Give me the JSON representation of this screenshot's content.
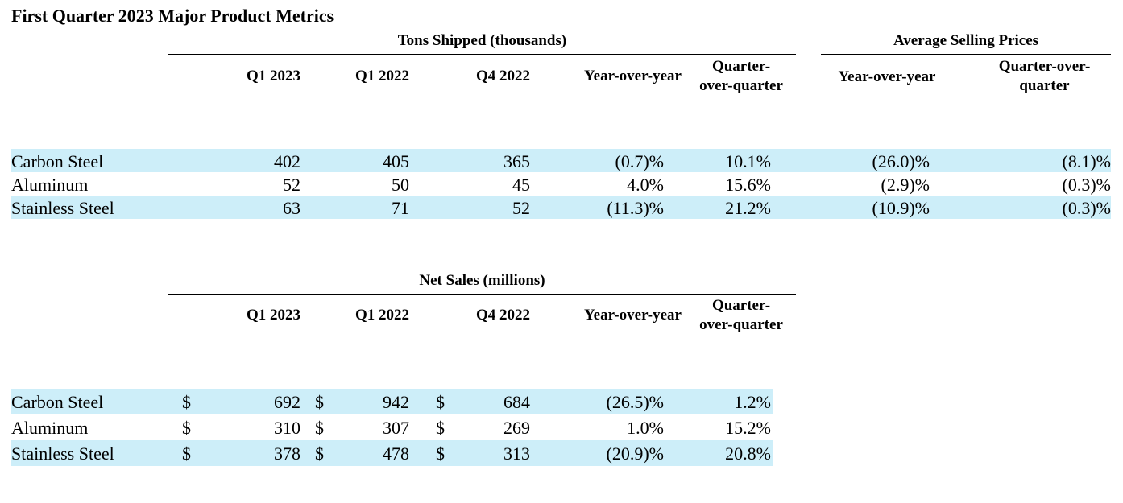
{
  "title": "First Quarter 2023 Major Product Metrics",
  "tons": {
    "group_label": "Tons Shipped (thousands)",
    "asp_group_label": "Average Selling Prices",
    "headers": [
      "Q1 2023",
      "Q1 2022",
      "Q4 2022",
      "Year-over-year",
      "Quarter-over-quarter"
    ],
    "hdr_qoq_line1": "Quarter-",
    "hdr_qoq_line2": "over-quarter",
    "asp_headers": {
      "yoy": "Year-over-year",
      "qoq_line1": "Quarter-over-",
      "qoq_line2": "quarter"
    },
    "rows": [
      {
        "product": "Carbon Steel",
        "q1_2023": "402",
        "q1_2022": "405",
        "q4_2022": "365",
        "yoy": "(0.7)%",
        "qoq": "10.1%",
        "asp_yoy": "(26.0)%",
        "asp_qoq": "(8.1)%"
      },
      {
        "product": "Aluminum",
        "q1_2023": "52",
        "q1_2022": "50",
        "q4_2022": "45",
        "yoy": "4.0%",
        "qoq": "15.6%",
        "asp_yoy": "(2.9)%",
        "asp_qoq": "(0.3)%"
      },
      {
        "product": "Stainless Steel",
        "q1_2023": "63",
        "q1_2022": "71",
        "q4_2022": "52",
        "yoy": "(11.3)%",
        "qoq": "21.2%",
        "asp_yoy": "(10.9)%",
        "asp_qoq": "(0.3)%"
      }
    ]
  },
  "sales": {
    "group_label": "Net Sales (millions)",
    "headers": [
      "Q1 2023",
      "Q1 2022",
      "Q4 2022",
      "Year-over-year"
    ],
    "hdr_qoq_line1": "Quarter-",
    "hdr_qoq_line2": "over-quarter",
    "currency": "$",
    "rows": [
      {
        "product": "Carbon Steel",
        "q1_2023": "692",
        "q1_2022": "942",
        "q4_2022": "684",
        "yoy": "(26.5)%",
        "qoq": "1.2%"
      },
      {
        "product": "Aluminum",
        "q1_2023": "310",
        "q1_2022": "307",
        "q4_2022": "269",
        "yoy": "1.0%",
        "qoq": "15.2%"
      },
      {
        "product": "Stainless Steel",
        "q1_2023": "378",
        "q1_2022": "478",
        "q4_2022": "313",
        "yoy": "(20.9)%",
        "qoq": "20.8%"
      }
    ]
  },
  "colors": {
    "row_band": "#cdeef9"
  }
}
